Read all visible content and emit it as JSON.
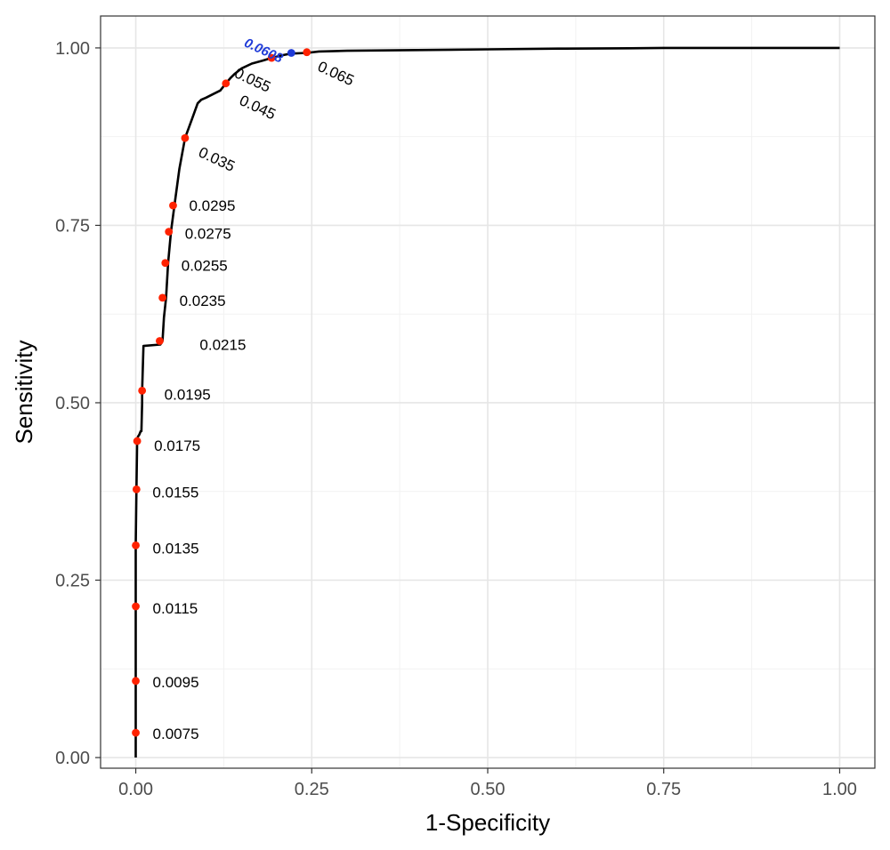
{
  "chart_data": {
    "type": "line",
    "title": "",
    "xlabel": "1-Specificity",
    "ylabel": "Sensitivity",
    "xlim": [
      -0.05,
      1.05
    ],
    "ylim": [
      -0.015,
      1.045
    ],
    "x_ticks": [
      0,
      0.25,
      0.5,
      0.75,
      1
    ],
    "x_tick_labels": [
      "0.00",
      "0.25",
      "0.50",
      "0.75",
      "1.00"
    ],
    "y_ticks": [
      0,
      0.25,
      0.5,
      0.75,
      1
    ],
    "y_tick_labels": [
      "0.00",
      "0.25",
      "0.50",
      "0.75",
      "1.00"
    ],
    "grid": true,
    "series": [
      {
        "color": "#000000",
        "x": [
          0,
          0,
          0,
          0,
          0.001,
          0.002,
          0.003,
          0.005,
          0.007,
          0.008,
          0.009,
          0.009,
          0.011,
          0.035,
          0.038,
          0.04,
          0.043,
          0.046,
          0.05,
          0.055,
          0.062,
          0.07,
          0.08,
          0.088,
          0.093,
          0.1,
          0.11,
          0.12,
          0.128,
          0.135,
          0.14,
          0.15,
          0.165,
          0.18,
          0.193,
          0.21,
          0.22,
          0.243,
          0.26,
          0.3,
          0.4,
          0.5,
          0.6,
          0.7,
          0.75,
          0.85,
          0.9,
          1.0
        ],
        "y": [
          0,
          0.035,
          0.11,
          0.3,
          0.378,
          0.446,
          0.452,
          0.455,
          0.46,
          0.46,
          0.5,
          0.517,
          0.58,
          0.582,
          0.587,
          0.62,
          0.648,
          0.697,
          0.741,
          0.778,
          0.83,
          0.873,
          0.9,
          0.922,
          0.927,
          0.93,
          0.935,
          0.94,
          0.95,
          0.958,
          0.963,
          0.971,
          0.978,
          0.982,
          0.986,
          0.99,
          0.992,
          0.993,
          0.995,
          0.996,
          0.997,
          0.998,
          0.999,
          0.9995,
          1.0,
          1.0,
          1.0,
          1.0
        ]
      }
    ],
    "threshold_points": [
      {
        "label": "0.0075",
        "x": 0.0,
        "y": 0.035,
        "color": "#ff2200"
      },
      {
        "label": "0.0095",
        "x": 0.0,
        "y": 0.108,
        "color": "#ff2200"
      },
      {
        "label": "0.0115",
        "x": 0.0,
        "y": 0.213,
        "color": "#ff2200"
      },
      {
        "label": "0.0135",
        "x": 0.0,
        "y": 0.299,
        "color": "#ff2200"
      },
      {
        "label": "0.0155",
        "x": 0.001,
        "y": 0.378,
        "color": "#ff2200"
      },
      {
        "label": "0.0175",
        "x": 0.002,
        "y": 0.446,
        "color": "#ff2200"
      },
      {
        "label": "0.0195",
        "x": 0.009,
        "y": 0.517,
        "color": "#ff2200"
      },
      {
        "label": "0.0215",
        "x": 0.034,
        "y": 0.587,
        "color": "#ff2200"
      },
      {
        "label": "0.0235",
        "x": 0.038,
        "y": 0.648,
        "color": "#ff2200"
      },
      {
        "label": "0.0255",
        "x": 0.042,
        "y": 0.697,
        "color": "#ff2200"
      },
      {
        "label": "0.0275",
        "x": 0.047,
        "y": 0.741,
        "color": "#ff2200"
      },
      {
        "label": "0.0295",
        "x": 0.053,
        "y": 0.778,
        "color": "#ff2200"
      },
      {
        "label": "0.035",
        "x": 0.07,
        "y": 0.873,
        "color": "#ff2200"
      },
      {
        "label": "0.045",
        "x": 0.128,
        "y": 0.95,
        "color": "#ff2200"
      },
      {
        "label": "0.055",
        "x": 0.193,
        "y": 0.986,
        "color": "#ff2200"
      },
      {
        "label": "0.0608",
        "x": 0.221,
        "y": 0.993,
        "color": "#1f3bd8",
        "optimal": true
      },
      {
        "label": "0.065",
        "x": 0.243,
        "y": 0.994,
        "color": "#ff2200"
      }
    ]
  }
}
